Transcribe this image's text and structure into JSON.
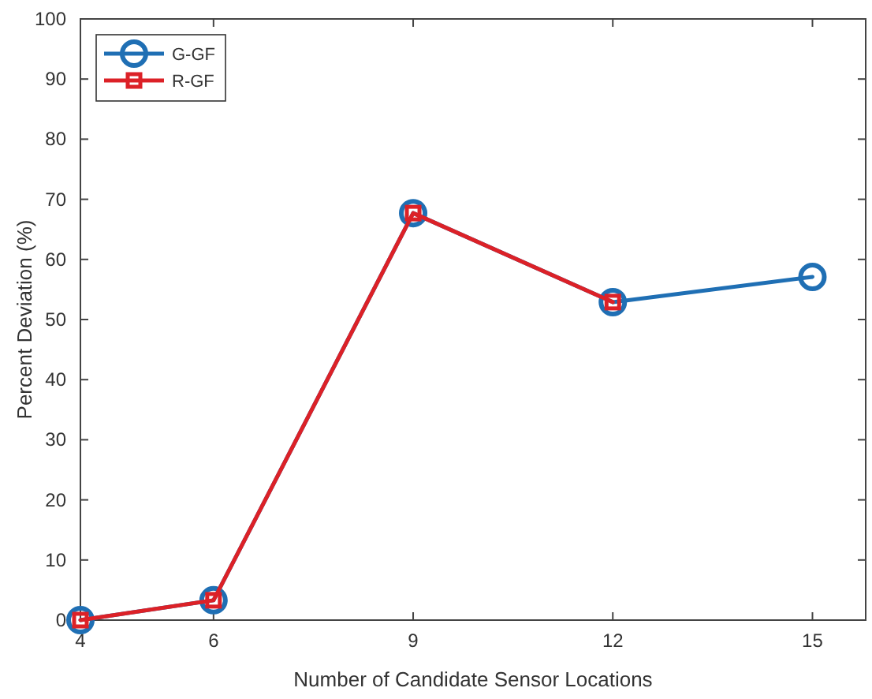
{
  "chart_data": {
    "type": "line",
    "xlabel": "Number of Candidate Sensor Locations",
    "ylabel": "Percent Deviation (%)",
    "xlim": [
      4,
      15.8
    ],
    "xticks": [
      4,
      6,
      9,
      12,
      15
    ],
    "ylim": [
      0,
      100
    ],
    "yticks": [
      0,
      10,
      20,
      30,
      40,
      50,
      60,
      70,
      80,
      90,
      100
    ],
    "grid": false,
    "legend": "top left",
    "line_style": "solid",
    "series": [
      {
        "name": "G-GF",
        "color": "#1f6fb4",
        "marker": "circle",
        "x": [
          4,
          6,
          9,
          12,
          15
        ],
        "values": [
          0,
          3.3,
          67.7,
          52.9,
          57.1
        ]
      },
      {
        "name": "R-GF",
        "color": "#dc2127",
        "marker": "square",
        "x": [
          4,
          6,
          9,
          12
        ],
        "values": [
          0,
          3.3,
          67.7,
          52.9
        ]
      }
    ]
  }
}
